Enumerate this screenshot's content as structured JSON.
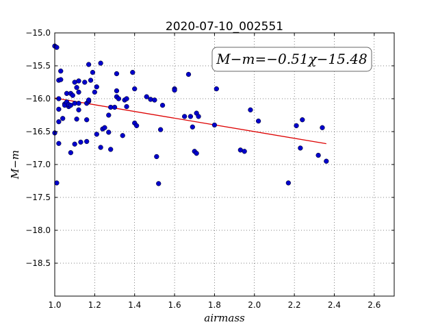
{
  "chart_data": {
    "type": "scatter",
    "title": "2020-07-10_002551",
    "xlabel": "airmass",
    "ylabel": "M−m",
    "xlim": [
      1.0,
      2.7
    ],
    "ylim": [
      -15.0,
      -19.0
    ],
    "y_inverted": true,
    "grid": true,
    "x_ticks": [
      "1.0",
      "1.2",
      "1.4",
      "1.6",
      "1.8",
      "2.0",
      "2.2",
      "2.4",
      "2.6"
    ],
    "y_ticks": [
      "−15.0",
      "−15.5",
      "−16.0",
      "−16.5",
      "−17.0",
      "−17.5",
      "−18.0",
      "−18.5"
    ],
    "annotation": "M−m=−0.51χ−15.48",
    "fit": {
      "slope": -0.51,
      "intercept": -15.48,
      "x_range": [
        1.0,
        2.36
      ],
      "color": "#dd0000"
    },
    "point_color": "#0000cc",
    "points": [
      [
        1.0,
        -15.2
      ],
      [
        1.01,
        -15.22
      ],
      [
        1.0,
        -16.52
      ],
      [
        1.01,
        -17.28
      ],
      [
        1.02,
        -15.72
      ],
      [
        1.02,
        -16.0
      ],
      [
        1.02,
        -16.16
      ],
      [
        1.02,
        -16.35
      ],
      [
        1.02,
        -16.68
      ],
      [
        1.03,
        -15.58
      ],
      [
        1.03,
        -15.71
      ],
      [
        1.04,
        -16.3
      ],
      [
        1.05,
        -16.08
      ],
      [
        1.05,
        -16.1
      ],
      [
        1.06,
        -15.92
      ],
      [
        1.06,
        -16.05
      ],
      [
        1.07,
        -16.12
      ],
      [
        1.07,
        -16.09
      ],
      [
        1.08,
        -15.92
      ],
      [
        1.08,
        -16.1
      ],
      [
        1.08,
        -16.82
      ],
      [
        1.09,
        -15.95
      ],
      [
        1.1,
        -16.07
      ],
      [
        1.1,
        -16.69
      ],
      [
        1.1,
        -15.75
      ],
      [
        1.11,
        -15.83
      ],
      [
        1.11,
        -16.31
      ],
      [
        1.12,
        -15.9
      ],
      [
        1.12,
        -15.73
      ],
      [
        1.12,
        -16.07
      ],
      [
        1.12,
        -16.17
      ],
      [
        1.13,
        -16.66
      ],
      [
        1.15,
        -15.75
      ],
      [
        1.16,
        -16.07
      ],
      [
        1.16,
        -16.32
      ],
      [
        1.16,
        -16.65
      ],
      [
        1.17,
        -15.48
      ],
      [
        1.17,
        -16.04
      ],
      [
        1.17,
        -16.02
      ],
      [
        1.18,
        -15.72
      ],
      [
        1.19,
        -15.6
      ],
      [
        1.2,
        -15.9
      ],
      [
        1.21,
        -15.82
      ],
      [
        1.21,
        -16.54
      ],
      [
        1.23,
        -15.46
      ],
      [
        1.23,
        -16.74
      ],
      [
        1.24,
        -16.46
      ],
      [
        1.25,
        -16.44
      ],
      [
        1.27,
        -16.25
      ],
      [
        1.27,
        -16.51
      ],
      [
        1.28,
        -16.13
      ],
      [
        1.28,
        -16.77
      ],
      [
        1.3,
        -16.13
      ],
      [
        1.31,
        -15.62
      ],
      [
        1.31,
        -15.88
      ],
      [
        1.31,
        -15.97
      ],
      [
        1.32,
        -16.0
      ],
      [
        1.34,
        -16.56
      ],
      [
        1.35,
        -16.02
      ],
      [
        1.36,
        -16.0
      ],
      [
        1.36,
        -16.12
      ],
      [
        1.39,
        -15.6
      ],
      [
        1.4,
        -15.85
      ],
      [
        1.4,
        -16.37
      ],
      [
        1.41,
        -16.41
      ],
      [
        1.46,
        -15.97
      ],
      [
        1.48,
        -16.01
      ],
      [
        1.5,
        -16.02
      ],
      [
        1.51,
        -16.88
      ],
      [
        1.52,
        -17.29
      ],
      [
        1.53,
        -16.47
      ],
      [
        1.54,
        -16.1
      ],
      [
        1.6,
        -15.85
      ],
      [
        1.6,
        -15.87
      ],
      [
        1.65,
        -16.27
      ],
      [
        1.67,
        -15.63
      ],
      [
        1.68,
        -16.27
      ],
      [
        1.69,
        -16.43
      ],
      [
        1.7,
        -16.8
      ],
      [
        1.71,
        -16.83
      ],
      [
        1.71,
        -16.22
      ],
      [
        1.72,
        -16.27
      ],
      [
        1.8,
        -16.4
      ],
      [
        1.81,
        -15.85
      ],
      [
        1.93,
        -16.78
      ],
      [
        1.95,
        -16.8
      ],
      [
        1.98,
        -16.17
      ],
      [
        2.02,
        -16.34
      ],
      [
        2.17,
        -17.28
      ],
      [
        2.21,
        -16.41
      ],
      [
        2.23,
        -16.75
      ],
      [
        2.24,
        -16.32
      ],
      [
        2.32,
        -16.86
      ],
      [
        2.34,
        -16.44
      ],
      [
        2.36,
        -16.95
      ]
    ]
  }
}
